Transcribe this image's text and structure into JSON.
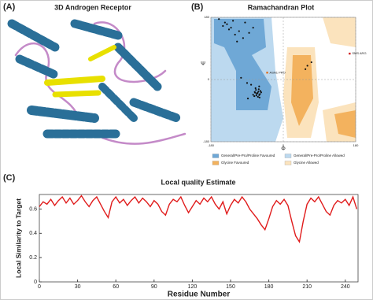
{
  "image_panel": {
    "label": "(A)",
    "title": "3D Androgen Receptor"
  },
  "chart_data": [
    {
      "type": "scatter",
      "label": "(B)",
      "title": "Ramachandran Plot",
      "x_label": "Φ",
      "y_label": "Ψ",
      "xlim": [
        -180,
        180
      ],
      "ylim": [
        -180,
        180
      ],
      "xticks": [
        -180,
        0,
        180
      ],
      "yticks": [
        -180,
        0,
        180
      ],
      "grid": true,
      "regions": [
        {
          "name": "General/Pre-Pro/Proline Favoured",
          "color": "#6fa8d6"
        },
        {
          "name": "General/Pre-Pro/Proline Allowed",
          "color": "#bcd9ef"
        },
        {
          "name": "Glycine Favoured",
          "color": "#f3b25e"
        },
        {
          "name": "Glycine Allowed",
          "color": "#fbe3bd"
        }
      ],
      "series": [
        {
          "color": "#111111",
          "x": [
            -65,
            -60,
            -70,
            -62,
            -58,
            -68,
            -72,
            -55,
            -63,
            -66,
            -61,
            -75,
            -57,
            -64,
            -69,
            -67,
            -59,
            -71,
            -60,
            -80,
            -90,
            -120,
            -130,
            -110,
            -140,
            -100,
            -150,
            -125,
            -85,
            -95,
            -115,
            -135,
            -75,
            -105,
            -160,
            60,
            55,
            70,
            -145,
            -88
          ],
          "y": [
            -40,
            -45,
            -38,
            -35,
            -42,
            -30,
            -48,
            -37,
            -50,
            -41,
            -28,
            -44,
            -33,
            -39,
            -25,
            -46,
            -52,
            -36,
            -20,
            -15,
            -10,
            130,
            150,
            140,
            160,
            120,
            155,
            170,
            135,
            165,
            110,
            145,
            150,
            5,
            175,
            40,
            30,
            50,
            165,
            -55
          ]
        }
      ],
      "annotations": [
        {
          "text": "ASN1 PRO",
          "x": -40,
          "y": 20,
          "color": "#e07020"
        },
        {
          "text": "SMS ARG",
          "x": 165,
          "y": 75,
          "color": "#d02020"
        }
      ]
    },
    {
      "type": "line",
      "label": "(C)",
      "title": "Local quality Estimate",
      "x_label": "Residue Number",
      "y_label": "Local Similarity to Target",
      "xlim": [
        0,
        250
      ],
      "ylim": [
        0,
        0.72
      ],
      "xticks": [
        0,
        30,
        60,
        90,
        120,
        150,
        180,
        210,
        240
      ],
      "yticks": [
        0,
        0.2,
        0.4,
        0.6
      ],
      "x": [
        0,
        3,
        6,
        9,
        12,
        15,
        18,
        21,
        24,
        27,
        30,
        33,
        36,
        39,
        42,
        45,
        48,
        51,
        54,
        57,
        60,
        63,
        66,
        69,
        72,
        75,
        78,
        81,
        84,
        87,
        90,
        93,
        96,
        99,
        102,
        105,
        108,
        111,
        114,
        117,
        120,
        123,
        126,
        129,
        132,
        135,
        138,
        141,
        144,
        147,
        150,
        153,
        156,
        159,
        162,
        165,
        168,
        171,
        174,
        177,
        180,
        183,
        186,
        189,
        192,
        195,
        198,
        201,
        204,
        207,
        210,
        213,
        216,
        219,
        222,
        225,
        228,
        231,
        234,
        237,
        240,
        243,
        246,
        249
      ],
      "series": [
        {
          "color": "#e01b1b",
          "values": [
            0.62,
            0.66,
            0.64,
            0.68,
            0.63,
            0.67,
            0.7,
            0.65,
            0.69,
            0.64,
            0.67,
            0.71,
            0.66,
            0.62,
            0.67,
            0.7,
            0.64,
            0.58,
            0.53,
            0.66,
            0.7,
            0.65,
            0.68,
            0.63,
            0.67,
            0.7,
            0.65,
            0.69,
            0.66,
            0.62,
            0.67,
            0.64,
            0.58,
            0.55,
            0.64,
            0.68,
            0.66,
            0.7,
            0.63,
            0.57,
            0.62,
            0.67,
            0.64,
            0.69,
            0.66,
            0.7,
            0.64,
            0.6,
            0.66,
            0.56,
            0.63,
            0.68,
            0.65,
            0.7,
            0.66,
            0.6,
            0.56,
            0.52,
            0.47,
            0.43,
            0.52,
            0.62,
            0.67,
            0.64,
            0.68,
            0.63,
            0.5,
            0.38,
            0.33,
            0.5,
            0.64,
            0.69,
            0.66,
            0.7,
            0.64,
            0.58,
            0.55,
            0.63,
            0.67,
            0.65,
            0.68,
            0.63,
            0.7,
            0.6
          ]
        }
      ]
    }
  ]
}
